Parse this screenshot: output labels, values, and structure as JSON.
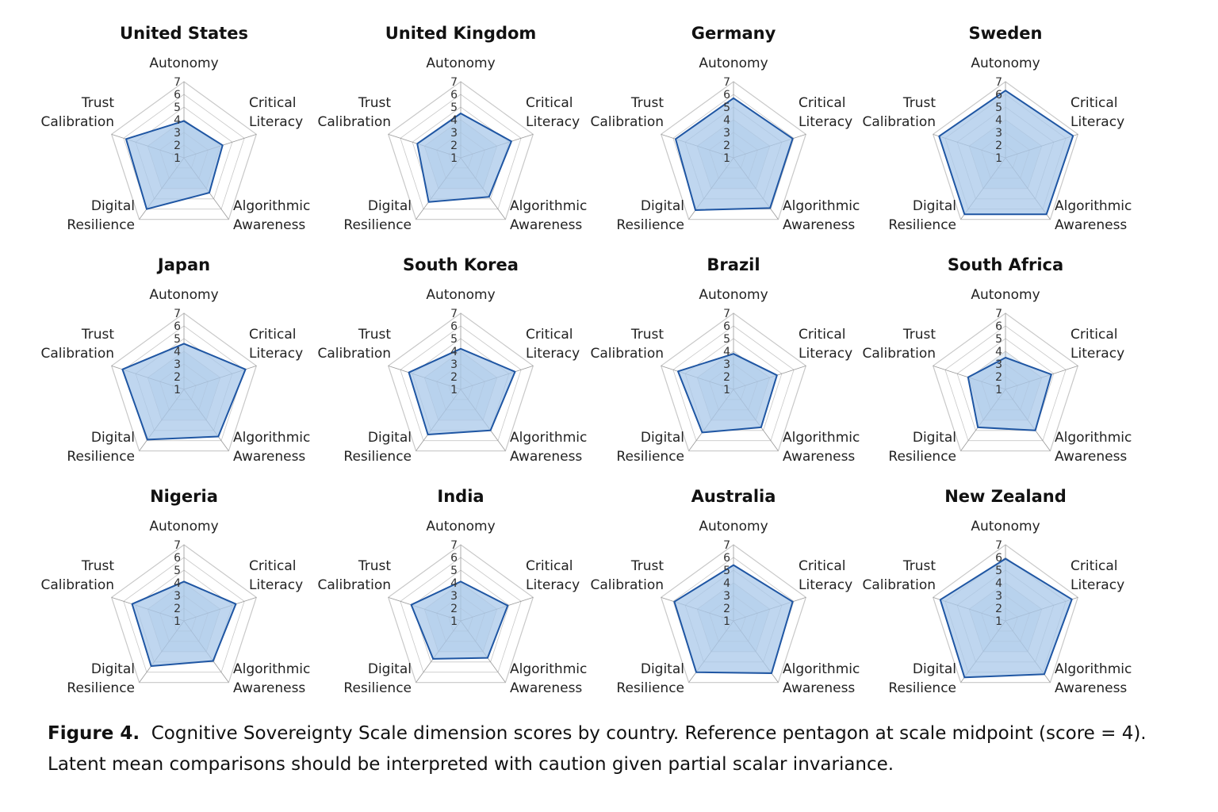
{
  "chart_data": {
    "type": "radar",
    "dimensions": [
      "Autonomy",
      "Critical Literacy",
      "Algorithmic Awareness",
      "Digital Resilience",
      "Trust Calibration"
    ],
    "dimension_labels": [
      [
        "Autonomy"
      ],
      [
        "Critical",
        "Literacy"
      ],
      [
        "Algorithmic",
        "Awareness"
      ],
      [
        "Digital",
        "Resilience"
      ],
      [
        "Trust",
        "Calibration"
      ]
    ],
    "scale": [
      1,
      7
    ],
    "ticks": [
      "1",
      "2",
      "3",
      "4",
      "5",
      "6",
      "7"
    ],
    "reference_value": 4,
    "colors": {
      "fill": "#a9c8ea",
      "stroke": "#1f56a3",
      "grid": "#c8c8c8",
      "reference": "#e3eef8"
    },
    "countries": [
      {
        "name": "United States",
        "values": [
          3.9,
          4.2,
          4.4,
          6.0,
          5.8
        ]
      },
      {
        "name": "United Kingdom",
        "values": [
          4.5,
          5.2,
          4.8,
          5.3,
          4.6
        ]
      },
      {
        "name": "Germany",
        "values": [
          5.7,
          5.9,
          5.9,
          6.1,
          5.8
        ]
      },
      {
        "name": "Sweden",
        "values": [
          6.3,
          6.6,
          6.5,
          6.5,
          6.5
        ]
      },
      {
        "name": "Japan",
        "values": [
          4.6,
          6.1,
          5.6,
          5.9,
          6.1
        ]
      },
      {
        "name": "South Korea",
        "values": [
          4.2,
          5.5,
          5.0,
          5.4,
          5.3
        ]
      },
      {
        "name": "Brazil",
        "values": [
          3.8,
          4.6,
          4.7,
          5.2,
          5.6
        ]
      },
      {
        "name": "South Africa",
        "values": [
          3.5,
          4.8,
          5.0,
          4.7,
          4.1
        ]
      },
      {
        "name": "Nigeria",
        "values": [
          4.1,
          5.3,
          4.9,
          5.4,
          5.3
        ]
      },
      {
        "name": "India",
        "values": [
          4.1,
          4.9,
          4.6,
          4.7,
          5.1
        ]
      },
      {
        "name": "Australia",
        "values": [
          5.4,
          5.9,
          6.1,
          6.0,
          5.9
        ]
      },
      {
        "name": "New Zealand",
        "values": [
          5.9,
          6.5,
          6.2,
          6.5,
          6.4
        ]
      }
    ]
  },
  "caption": {
    "label": "Figure 4.",
    "text": "Cognitive Sovereignty Scale dimension scores by country.  Reference pentagon at scale midpoint (score = 4).",
    "line2": "Latent mean comparisons should be interpreted with caution given partial scalar invariance."
  }
}
